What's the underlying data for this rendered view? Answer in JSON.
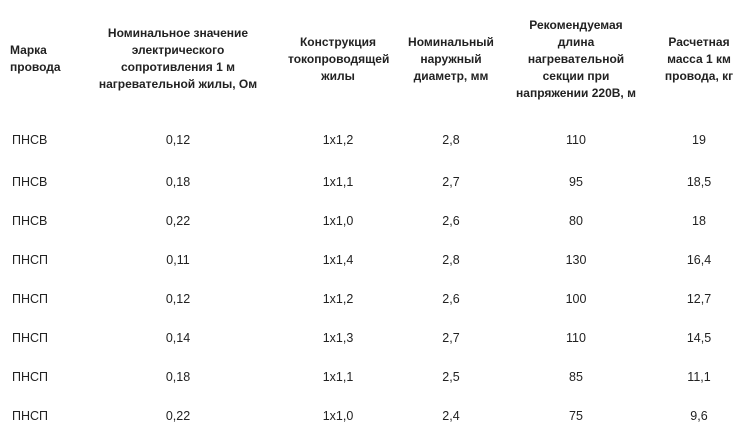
{
  "table": {
    "headers": [
      "Марка провода",
      "Номинальное значение электрического сопротивления 1 м нагревательной жилы, Ом",
      "Конструкция токопроводящей жилы",
      "Номинальный наружный диаметр, мм",
      "Рекомендуемая длина нагревательной секции при напряжении 220В, м",
      "Расчетная масса 1 км провода, кг"
    ],
    "rows": [
      [
        "ПНСВ",
        "0,12",
        "1х1,2",
        "2,8",
        "110",
        "19"
      ],
      [
        "ПНСВ",
        "0,18",
        "1х1,1",
        "2,7",
        "95",
        "18,5"
      ],
      [
        "ПНСВ",
        "0,22",
        "1х1,0",
        "2,6",
        "80",
        "18"
      ],
      [
        "ПНСП",
        "0,11",
        "1х1,4",
        "2,8",
        "130",
        "16,4"
      ],
      [
        "ПНСП",
        "0,12",
        "1х1,2",
        "2,6",
        "100",
        "12,7"
      ],
      [
        "ПНСП",
        "0,14",
        "1х1,3",
        "2,7",
        "110",
        "14,5"
      ],
      [
        "ПНСП",
        "0,18",
        "1х1,1",
        "2,5",
        "85",
        "11,1"
      ],
      [
        "ПНСП",
        "0,22",
        "1х1,0",
        "2,4",
        "75",
        "9,6"
      ]
    ]
  }
}
